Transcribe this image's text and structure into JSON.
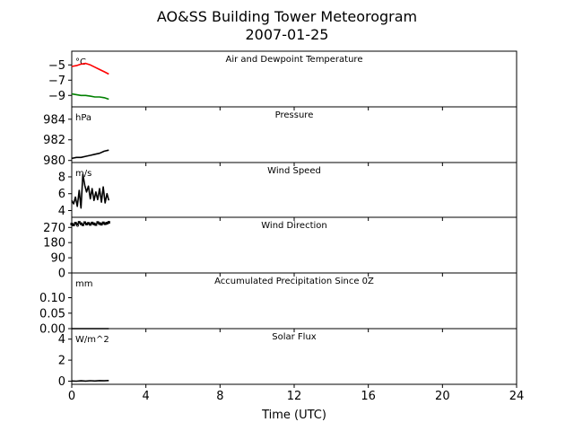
{
  "figure": {
    "title": "AO&SS Building Tower Meteorogram",
    "subtitle": "2007-01-25"
  },
  "chart_data": [
    {
      "type": "line",
      "title": "Air and Dewpoint Temperature",
      "unit": "°C",
      "xlabel": "Time (UTC)",
      "xlim": [
        0,
        24
      ],
      "xticks": [
        0,
        4,
        8,
        12,
        16,
        20,
        24
      ],
      "ylim": [
        -10.5,
        -3.2
      ],
      "yticks": [
        -5,
        -7,
        -9
      ],
      "ytick_labels": [
        "−5",
        "−7",
        "−9"
      ],
      "series": [
        {
          "color": "#ff0000",
          "x": [
            0.0,
            0.25,
            0.5,
            0.75,
            1.0,
            1.25,
            1.5,
            1.75,
            2.0
          ],
          "y": [
            -5.2,
            -5.1,
            -4.9,
            -4.8,
            -5.0,
            -5.3,
            -5.6,
            -5.9,
            -6.2
          ]
        },
        {
          "color": "#008000",
          "x": [
            0.0,
            0.25,
            0.5,
            0.75,
            1.0,
            1.25,
            1.5,
            1.75,
            2.0
          ],
          "y": [
            -8.8,
            -8.9,
            -9.0,
            -9.0,
            -9.1,
            -9.2,
            -9.2,
            -9.3,
            -9.5
          ]
        }
      ]
    },
    {
      "type": "line",
      "title": "Pressure",
      "unit": "hPa",
      "xlim": [
        0,
        24
      ],
      "ylim": [
        979.8,
        985.2
      ],
      "yticks": [
        980,
        982,
        984
      ],
      "ytick_labels": [
        "980",
        "982",
        "984"
      ],
      "series": [
        {
          "color": "#000000",
          "x": [
            0.0,
            0.25,
            0.5,
            0.75,
            1.0,
            1.25,
            1.5,
            1.75,
            2.0
          ],
          "y": [
            980.2,
            980.3,
            980.3,
            980.4,
            980.5,
            980.6,
            980.7,
            980.9,
            981.0
          ]
        }
      ]
    },
    {
      "type": "line",
      "title": "Wind Speed",
      "unit": "m/s",
      "xlim": [
        0,
        24
      ],
      "ylim": [
        3.2,
        9.7
      ],
      "yticks": [
        4,
        6,
        8
      ],
      "ytick_labels": [
        "4",
        "6",
        "8"
      ],
      "series": [
        {
          "color": "#000000",
          "x": [
            0.0,
            0.1,
            0.2,
            0.3,
            0.4,
            0.5,
            0.6,
            0.7,
            0.8,
            0.9,
            1.0,
            1.1,
            1.2,
            1.3,
            1.4,
            1.5,
            1.6,
            1.7,
            1.8,
            1.9,
            2.0
          ],
          "y": [
            5.2,
            4.8,
            5.6,
            4.5,
            6.4,
            4.3,
            8.3,
            7.0,
            6.2,
            6.9,
            5.4,
            6.6,
            5.2,
            6.2,
            5.3,
            6.6,
            5.0,
            6.8,
            4.9,
            6.0,
            5.2
          ]
        }
      ]
    },
    {
      "type": "scatter",
      "title": "Wind Direction",
      "unit": "°",
      "xlim": [
        0,
        24
      ],
      "ylim": [
        0,
        330
      ],
      "yticks": [
        0,
        90,
        180,
        270
      ],
      "ytick_labels": [
        "0",
        "90",
        "180",
        "270"
      ],
      "series": [
        {
          "color": "#000000",
          "x": [
            0.0,
            0.1,
            0.2,
            0.3,
            0.4,
            0.5,
            0.6,
            0.7,
            0.8,
            0.9,
            1.0,
            1.1,
            1.2,
            1.3,
            1.4,
            1.5,
            1.6,
            1.7,
            1.8,
            1.9,
            2.0
          ],
          "y": [
            290,
            285,
            295,
            288,
            300,
            292,
            286,
            298,
            290,
            294,
            288,
            296,
            291,
            287,
            299,
            293,
            289,
            297,
            292,
            295,
            300
          ]
        }
      ]
    },
    {
      "type": "line",
      "title": "Accumulated Precipitation Since 0Z",
      "unit": "mm",
      "xlim": [
        0,
        24
      ],
      "ylim": [
        0,
        0.18
      ],
      "yticks": [
        0,
        0.05,
        0.1
      ],
      "ytick_labels": [
        "0.00",
        "0.05",
        "0.10"
      ],
      "series": [
        {
          "color": "#000000",
          "x": [
            0.0,
            0.5,
            1.0,
            1.5,
            2.0
          ],
          "y": [
            0.0,
            0.0,
            0.0,
            0.0,
            0.0
          ]
        }
      ]
    },
    {
      "type": "line",
      "title": "Solar Flux",
      "unit": "W/m^2",
      "xlim": [
        0,
        24
      ],
      "ylim": [
        -0.3,
        5.0
      ],
      "yticks": [
        0,
        2,
        4
      ],
      "ytick_labels": [
        "0",
        "2",
        "4"
      ],
      "series": [
        {
          "color": "#000000",
          "x": [
            0.0,
            0.25,
            0.5,
            0.75,
            1.0,
            1.25,
            1.5,
            1.75,
            2.0
          ],
          "y": [
            0.02,
            0.0,
            0.03,
            0.01,
            0.04,
            0.02,
            0.05,
            0.03,
            0.06
          ]
        }
      ]
    }
  ]
}
